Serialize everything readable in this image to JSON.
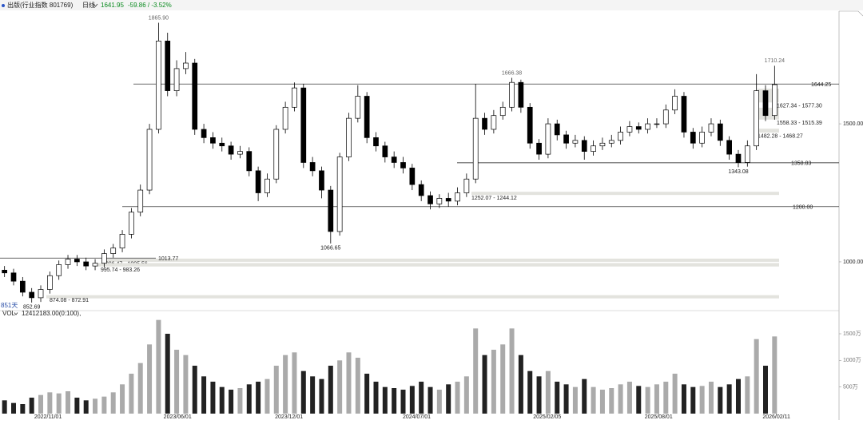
{
  "header": {
    "title": "出版(行业指数 801769)",
    "period": "日线",
    "price": 1641.95,
    "change": "-59.86 / -3.52%",
    "bars_label": "851天",
    "vol_label": "VOL",
    "vol_info": "12412183.00(0:100),"
  },
  "chart_data": {
    "type": "candlestick",
    "xlim": [
      -0.5,
      85.5
    ],
    "xticks": [
      {
        "value": 4.8,
        "label": "2022/11/01"
      },
      {
        "value": 19.1,
        "label": "2023/06/01"
      },
      {
        "value": 31.4,
        "label": "2023/12/01"
      },
      {
        "value": 45.5,
        "label": "2024/07/01"
      },
      {
        "value": 59.9,
        "label": "2025/02/05"
      },
      {
        "value": 72.2,
        "label": "2025/08/01"
      },
      {
        "value": 85.2,
        "label": "2026/02/11"
      }
    ],
    "ylim": [
      835,
      1908
    ],
    "yticks": [
      {
        "value": 1000,
        "label": "1000.00"
      },
      {
        "value": 1500,
        "label": "1500.00"
      }
    ],
    "color": "#000000",
    "open": [
      970,
      960,
      930,
      890,
      870,
      900,
      950,
      990,
      1010,
      1000,
      985,
      995,
      1030,
      1050,
      1100,
      1180,
      1260,
      1480,
      1800,
      1620,
      1700,
      1720,
      1480,
      1450,
      1430,
      1420,
      1390,
      1400,
      1330,
      1250,
      1300,
      1480,
      1560,
      1630,
      1360,
      1330,
      1260,
      1110,
      1380,
      1520,
      1600,
      1450,
      1420,
      1380,
      1360,
      1340,
      1280,
      1240,
      1210,
      1230,
      1220,
      1250,
      1300,
      1520,
      1480,
      1530,
      1560,
      1650,
      1560,
      1430,
      1390,
      1500,
      1460,
      1430,
      1440,
      1400,
      1420,
      1430,
      1440,
      1470,
      1490,
      1480,
      1500,
      1500,
      1550,
      1600,
      1470,
      1430,
      1470,
      1500,
      1440,
      1390,
      1360,
      1420,
      1620,
      1530
    ],
    "high": [
      985,
      975,
      945,
      905,
      915,
      965,
      1005,
      1025,
      1025,
      1015,
      1010,
      1045,
      1065,
      1115,
      1195,
      1280,
      1500,
      1865.9,
      1830,
      1730,
      1760,
      1735,
      1500,
      1470,
      1450,
      1435,
      1420,
      1415,
      1345,
      1320,
      1495,
      1580,
      1650,
      1645,
      1380,
      1345,
      1275,
      1395,
      1540,
      1640,
      1615,
      1470,
      1435,
      1400,
      1380,
      1355,
      1295,
      1255,
      1245,
      1250,
      1270,
      1320,
      1644,
      1540,
      1550,
      1580,
      1666.38,
      1660,
      1575,
      1445,
      1520,
      1515,
      1475,
      1460,
      1455,
      1440,
      1450,
      1460,
      1490,
      1510,
      1505,
      1520,
      1520,
      1570,
      1625,
      1615,
      1485,
      1490,
      1520,
      1515,
      1455,
      1405,
      1440,
      1680,
      1640,
      1710.24
    ],
    "low": [
      945,
      915,
      875,
      852.69,
      855,
      885,
      935,
      975,
      985,
      970,
      970,
      980,
      1015,
      1035,
      1085,
      1165,
      1245,
      1465,
      1600,
      1600,
      1680,
      1460,
      1430,
      1410,
      1400,
      1370,
      1375,
      1310,
      1220,
      1235,
      1285,
      1465,
      1545,
      1340,
      1310,
      1230,
      1066.65,
      1095,
      1365,
      1505,
      1430,
      1400,
      1360,
      1340,
      1320,
      1260,
      1220,
      1190,
      1195,
      1200,
      1205,
      1235,
      1285,
      1460,
      1465,
      1515,
      1545,
      1540,
      1410,
      1370,
      1375,
      1440,
      1410,
      1415,
      1370,
      1385,
      1405,
      1415,
      1425,
      1455,
      1465,
      1465,
      1485,
      1485,
      1535,
      1450,
      1410,
      1415,
      1455,
      1420,
      1370,
      1343.08,
      1345,
      1405,
      1510,
      1515
    ],
    "close": [
      960,
      930,
      890,
      870,
      900,
      950,
      990,
      1010,
      1000,
      985,
      995,
      1030,
      1050,
      1100,
      1180,
      1260,
      1480,
      1800,
      1620,
      1700,
      1720,
      1480,
      1450,
      1430,
      1420,
      1390,
      1400,
      1330,
      1250,
      1300,
      1480,
      1560,
      1630,
      1360,
      1330,
      1260,
      1110,
      1380,
      1520,
      1600,
      1450,
      1420,
      1380,
      1360,
      1340,
      1280,
      1240,
      1210,
      1230,
      1220,
      1250,
      1300,
      1520,
      1480,
      1530,
      1560,
      1650,
      1560,
      1430,
      1390,
      1500,
      1460,
      1430,
      1440,
      1400,
      1420,
      1430,
      1440,
      1470,
      1490,
      1480,
      1500,
      1500,
      1550,
      1600,
      1470,
      1430,
      1470,
      1500,
      1440,
      1390,
      1360,
      1420,
      1620,
      1530,
      1641.95
    ],
    "levels": [
      1644.25,
      1358.83,
      {
        "value": 1200,
        "label": "1200.00"
      },
      1013.77
    ],
    "zones": [
      {
        "high": 1627.34,
        "low": 1577.3,
        "label": "1627.34 - 1577.30"
      },
      {
        "high": 1558.33,
        "low": 1515.39,
        "label": "1558.33 - 1515.39"
      },
      {
        "high": 1482.28,
        "low": 1468.27,
        "label": "1482.28 - 1468.27"
      },
      {
        "high": 1252.07,
        "low": 1244.12,
        "label": "1252.07 - 1244.12"
      },
      {
        "high": 1006.47,
        "low": 1005.56,
        "label": "1006.47 - 1005.56"
      },
      {
        "high": 995.74,
        "low": 983.26,
        "label": "995.74 - 983.26"
      },
      {
        "high": 874.08,
        "low": 872.91,
        "label": "874.08 - 872.91"
      }
    ],
    "peaks": [
      {
        "x": 17,
        "value": 1865.9,
        "label": "1865.90"
      },
      {
        "x": 3,
        "value": 852.69
      },
      {
        "x": 36,
        "value": 1066.65
      },
      {
        "x": 56,
        "value": 1666.38
      },
      {
        "x": 81,
        "value": 1343.08
      },
      {
        "x": 85,
        "value": 1710.24
      }
    ],
    "volume": {
      "ylim": [
        0,
        1800
      ],
      "yticks": [
        {
          "value": 500,
          "label": "500万"
        },
        {
          "value": 1000,
          "label": "1000万"
        },
        {
          "value": 1500,
          "label": "1500万"
        }
      ],
      "values": [
        250,
        200,
        180,
        300,
        350,
        400,
        380,
        420,
        300,
        250,
        280,
        320,
        400,
        550,
        750,
        950,
        1300,
        1760,
        1500,
        1200,
        1100,
        900,
        700,
        600,
        500,
        450,
        480,
        550,
        600,
        650,
        900,
        1100,
        1150,
        800,
        700,
        650,
        900,
        1000,
        1150,
        1050,
        750,
        600,
        500,
        480,
        450,
        520,
        600,
        500,
        450,
        550,
        600,
        700,
        1600,
        1100,
        1200,
        1300,
        1600,
        1100,
        800,
        700,
        800,
        600,
        550,
        500,
        650,
        500,
        450,
        480,
        550,
        600,
        520,
        500,
        550,
        600,
        750,
        550,
        500,
        520,
        600,
        500,
        550,
        650,
        700,
        1400,
        900,
        1450
      ]
    }
  }
}
